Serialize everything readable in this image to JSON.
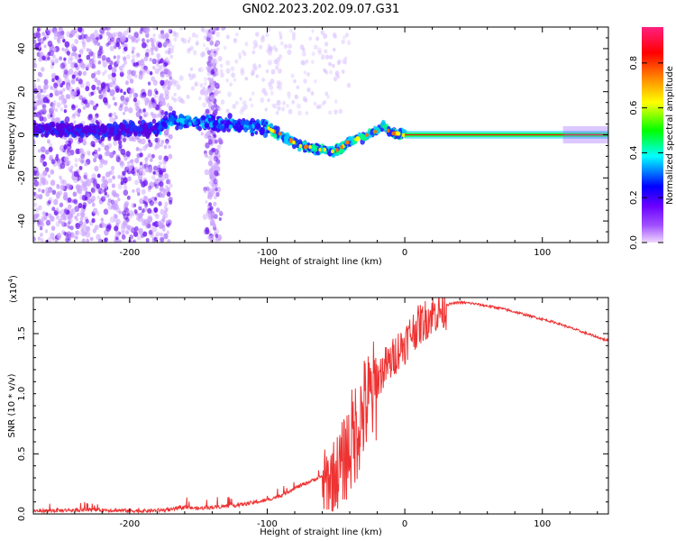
{
  "title": "GN02.2023.202.09.07.G31",
  "chart_data": [
    {
      "type": "heatmap",
      "xlabel": "Height of straight line (km)",
      "ylabel": "Frequency (Hz)",
      "xlim": [
        -270,
        148
      ],
      "ylim": [
        -50,
        50
      ],
      "xticks": [
        -200,
        -100,
        0,
        100
      ],
      "yticks": [
        -40,
        -20,
        0,
        20,
        40
      ],
      "colorbar": {
        "label": "Normalized spectral amplitude",
        "range": [
          0,
          0.96
        ],
        "ticks": [
          0.0,
          0.2,
          0.4,
          0.6,
          0.8
        ],
        "tick_labels": [
          "0.0",
          "0.2",
          "0.4",
          "0.6",
          "0.8"
        ],
        "colors": [
          "#efd8ff",
          "#7a00ff",
          "#0000ff",
          "#00ffff",
          "#00ff00",
          "#ffff00",
          "#ff8000",
          "#ff0000",
          "#ff2080"
        ]
      },
      "ridge_frequency": {
        "x": [
          -270,
          -240,
          -210,
          -180,
          -170,
          -150,
          -130,
          -110,
          -100,
          -90,
          -80,
          -70,
          -60,
          -50,
          -40,
          -30,
          -20,
          -15,
          -10,
          0,
          20,
          60,
          100,
          148
        ],
        "y": [
          3,
          2,
          2,
          3,
          7,
          6,
          5,
          4,
          3,
          0,
          -4,
          -6,
          -7,
          -8,
          -3,
          -1,
          2,
          4,
          1,
          0,
          0,
          0,
          0,
          0
        ]
      }
    },
    {
      "type": "line",
      "xlabel": "Height of straight line (km)",
      "ylabel": "SNR (10 * v/v)",
      "scale_label": "(x10",
      "scale_exponent": "4",
      "xlim": [
        -270,
        148
      ],
      "ylim": [
        0,
        1.8
      ],
      "xticks": [
        -200,
        -100,
        0,
        100
      ],
      "yticks": [
        0.0,
        0.5,
        1.0,
        1.5
      ],
      "ytick_labels": [
        "0.0",
        "0.5",
        "1.0",
        "1.5"
      ],
      "color": "#ee3333",
      "series": [
        {
          "x": [
            -270,
            -250,
            -230,
            -210,
            -190,
            -170,
            -160,
            -150,
            -140,
            -130,
            -120,
            -110,
            -100,
            -90,
            -80,
            -70,
            -60,
            -55,
            -50,
            -45,
            -40,
            -35,
            -30,
            -25,
            -20,
            -15,
            -10,
            -5,
            0,
            5,
            10,
            15,
            20,
            25,
            30,
            35,
            40,
            50,
            60,
            70,
            80,
            90,
            100,
            110,
            120,
            130,
            140,
            148
          ],
          "y": [
            0.01,
            0.015,
            0.02,
            0.015,
            0.01,
            0.02,
            0.04,
            0.03,
            0.04,
            0.05,
            0.06,
            0.08,
            0.1,
            0.14,
            0.2,
            0.25,
            0.3,
            0.35,
            0.4,
            0.5,
            0.65,
            0.8,
            0.95,
            1.05,
            1.15,
            1.25,
            1.3,
            1.4,
            1.45,
            1.55,
            1.6,
            1.65,
            1.7,
            1.72,
            1.74,
            1.75,
            1.76,
            1.75,
            1.73,
            1.71,
            1.68,
            1.65,
            1.62,
            1.59,
            1.55,
            1.51,
            1.47,
            1.44
          ]
        }
      ]
    }
  ]
}
